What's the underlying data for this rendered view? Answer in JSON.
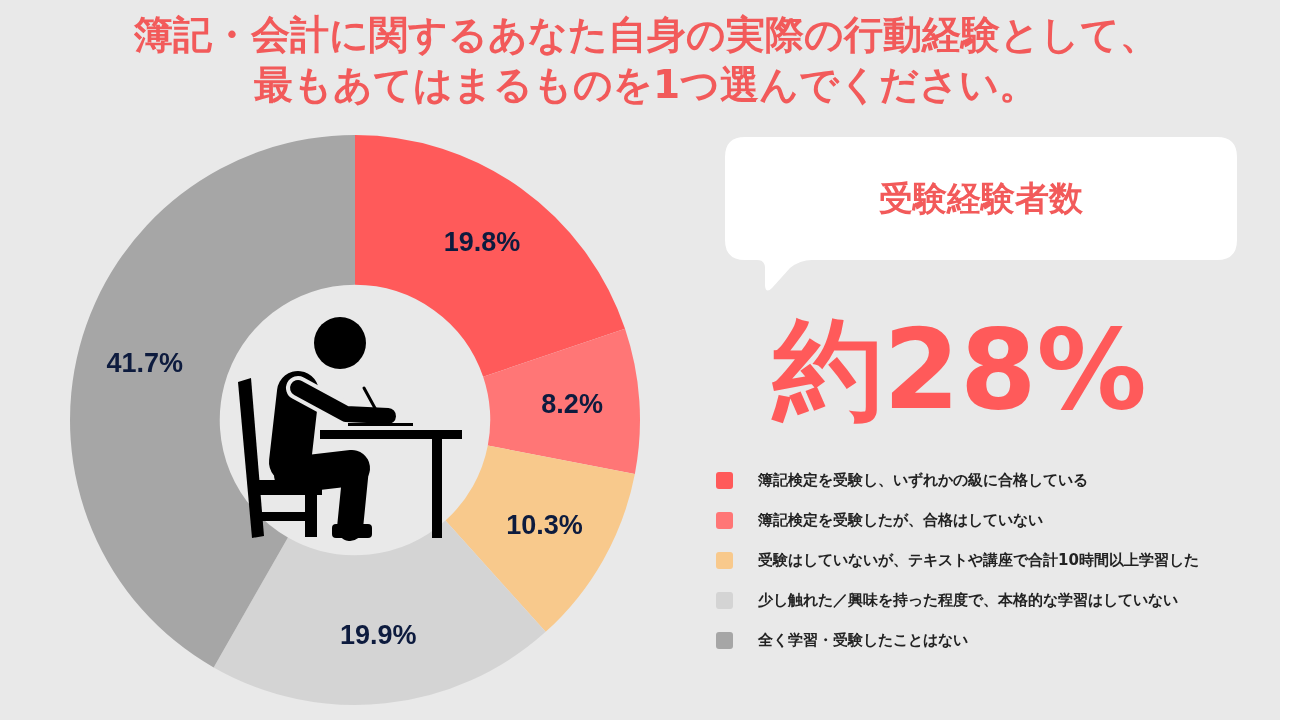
{
  "chart_data": {
    "type": "donut",
    "title": "簿記・会計に関するあなた自身の実際の行動経験として、最もあてはまるものを1つ選んでください。",
    "categories": [
      "簿記検定を受験し、いずれかの級に合格している",
      "簿記検定を受験したが、合格はしていない",
      "受験はしていないが、テキストや講座で合計10時間以上学習した",
      "少し触れた／興味を持った程度で、本格的な学習はしていない",
      "全く学習・受験したことはない"
    ],
    "values": [
      19.8,
      8.2,
      10.3,
      19.9,
      41.7
    ],
    "colors": [
      "#ff5a5a",
      "#ff7676",
      "#f8c98c",
      "#d4d4d4",
      "#a6a6a6"
    ],
    "value_labels": [
      "19.8%",
      "8.2%",
      "10.3%",
      "19.9%",
      "41.7%"
    ],
    "legend": "right",
    "annotations": [
      "受験経験者数",
      "約28%"
    ]
  }
}
